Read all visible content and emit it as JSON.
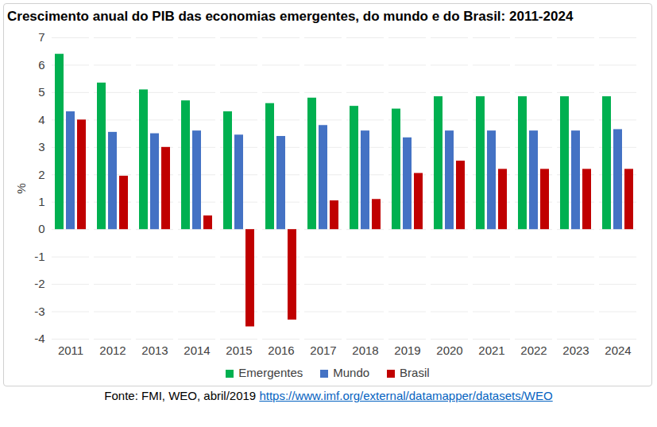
{
  "chart_data": {
    "type": "bar",
    "title": "Crescimento anual do PIB das economias emergentes, do mundo e do Brasil: 2011-2024",
    "y_label": "%",
    "categories": [
      "2011",
      "2012",
      "2013",
      "2014",
      "2015",
      "2016",
      "2017",
      "2018",
      "2019",
      "2020",
      "2021",
      "2022",
      "2023",
      "2024"
    ],
    "series": [
      {
        "name": "Emergentes",
        "color": "#00b050",
        "values": [
          6.4,
          5.35,
          5.1,
          4.7,
          4.3,
          4.6,
          4.8,
          4.5,
          4.4,
          4.85,
          4.85,
          4.85,
          4.85,
          4.85
        ]
      },
      {
        "name": "Mundo",
        "color": "#4472c4",
        "values": [
          4.3,
          3.55,
          3.5,
          3.6,
          3.45,
          3.4,
          3.8,
          3.6,
          3.35,
          3.6,
          3.6,
          3.6,
          3.6,
          3.65
        ]
      },
      {
        "name": "Brasil",
        "color": "#c00000",
        "values": [
          4.0,
          1.95,
          3.0,
          0.5,
          -3.55,
          -3.3,
          1.05,
          1.1,
          2.05,
          2.5,
          2.2,
          2.2,
          2.2,
          2.2
        ]
      }
    ],
    "ylim": [
      -4,
      7
    ],
    "yticks": [
      -4,
      -3,
      -2,
      -1,
      0,
      1,
      2,
      3,
      4,
      5,
      6,
      7
    ],
    "grid": true,
    "legend": "bottom",
    "source": "Fonte: FMI, WEO, abril/2019",
    "source_url": "https://www.imf.org/external/datamapper/datasets/WEO"
  }
}
